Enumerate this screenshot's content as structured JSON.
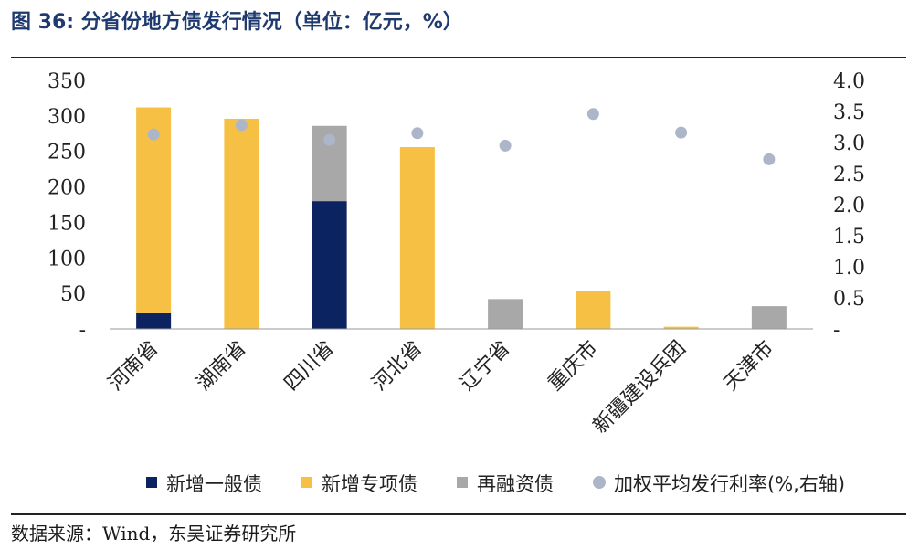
{
  "figure": {
    "title": "图 36:  分省份地方债发行情况（单位：亿元，%）",
    "source": "数据来源：Wind，东吴证券研究所"
  },
  "colors": {
    "general": "#0b2360",
    "special": "#f5c043",
    "refinance": "#a8a8a8",
    "rate": "#adb6c9",
    "title": "#1f3a6e"
  },
  "chart_data": {
    "type": "bar",
    "stacked": true,
    "categories": [
      "河南省",
      "湖南省",
      "四川省",
      "河北省",
      "辽宁省",
      "重庆市",
      "新疆建设兵团",
      "天津市"
    ],
    "series": [
      {
        "name": "新增一般债",
        "axis": "left",
        "values": [
          22,
          0,
          180,
          0,
          0,
          0,
          0,
          0
        ]
      },
      {
        "name": "新增专项债",
        "axis": "left",
        "values": [
          290,
          296,
          0,
          256,
          0,
          54,
          3,
          0
        ]
      },
      {
        "name": "再融资债",
        "axis": "left",
        "values": [
          0,
          0,
          106,
          0,
          42,
          0,
          0,
          32
        ]
      },
      {
        "name": "加权平均发行利率(%,右轴)",
        "axis": "right",
        "type": "scatter",
        "values": [
          3.13,
          3.28,
          3.04,
          3.15,
          2.95,
          3.46,
          3.16,
          2.73
        ]
      }
    ],
    "y_left": {
      "min": 0,
      "max": 350,
      "ticks": [
        "-",
        "50",
        "100",
        "150",
        "200",
        "250",
        "300",
        "350"
      ]
    },
    "y_right": {
      "min": 0,
      "max": 4.0,
      "ticks": [
        "-",
        "0.5",
        "1.0",
        "1.5",
        "2.0",
        "2.5",
        "3.0",
        "3.5",
        "4.0"
      ]
    },
    "grid": false,
    "legend": "bottom"
  }
}
